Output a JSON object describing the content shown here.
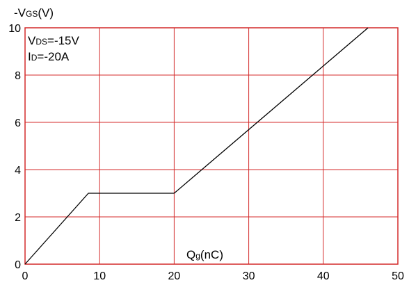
{
  "chart_data": {
    "type": "line",
    "title": "",
    "ylabel": {
      "prefix": "-V",
      "sub": "GS",
      "suffix": "(V)"
    },
    "xlabel": {
      "prefix": "Q",
      "sub": "g",
      "suffix": "(nC)"
    },
    "annotations": [
      {
        "prefix": "V",
        "sub": "DS",
        "suffix": "=-15V"
      },
      {
        "prefix": "I",
        "sub": "D",
        "suffix": "=-20A"
      }
    ],
    "xlim": [
      0,
      50
    ],
    "ylim": [
      0,
      10
    ],
    "xticks": [
      "0",
      "10",
      "20",
      "30",
      "40",
      "50"
    ],
    "yticks": [
      "0",
      "2",
      "4",
      "6",
      "8",
      "10"
    ],
    "grid": true,
    "series": [
      {
        "x": [
          0,
          8.5,
          20,
          46
        ],
        "y": [
          0,
          3,
          3,
          10
        ]
      }
    ],
    "colors": {
      "grid": "#d42a2a",
      "frame": "#d42a2a",
      "line": "#000000"
    }
  }
}
